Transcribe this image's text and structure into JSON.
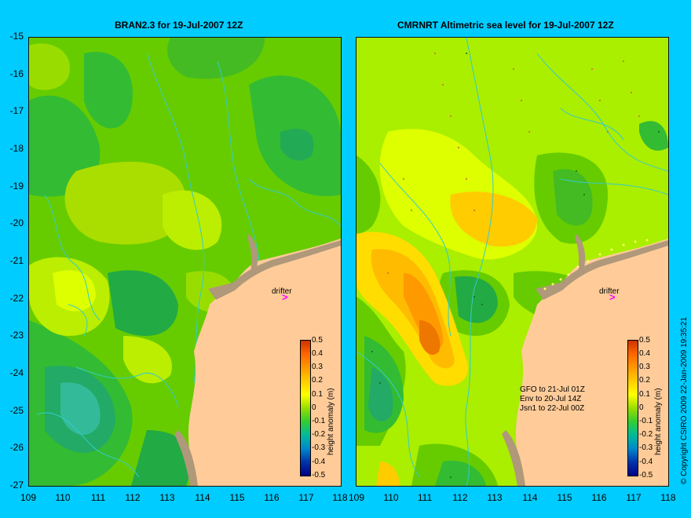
{
  "colors": {
    "background": "#00ccff",
    "land": "#ffcc99",
    "coast_shelf": "#c0a080",
    "contour": "#33cccc",
    "drifter_arrow": "#ff00ff"
  },
  "left_panel": {
    "title": "BRAN2.3  for 19-Jul-2007 12Z"
  },
  "right_panel": {
    "title": "CMRNRT Altimetric sea level  for 19-Jul-2007 12Z"
  },
  "axes": {
    "y_ticks": [
      "-15",
      "-16",
      "-17",
      "-18",
      "-19",
      "-20",
      "-21",
      "-22",
      "-23",
      "-24",
      "-25",
      "-26",
      "-27"
    ],
    "x_ticks": [
      "109",
      "110",
      "111",
      "112",
      "113",
      "114",
      "115",
      "116",
      "117",
      "118"
    ]
  },
  "colorbar": {
    "title": "height anomaly (m)",
    "ticks": [
      "0.5",
      "0.4",
      "0.3",
      "0.2",
      "0.1",
      "0",
      "-0.1",
      "-0.2",
      "-0.3",
      "-0.4",
      "-0.5"
    ],
    "range": [
      -0.5,
      0.5
    ]
  },
  "drifter_label": "drifter",
  "satellites": [
    "GFO to 21-Jul 01Z",
    "Env to 20-Jul 14Z",
    "Jsn1 to 22-Jul 00Z"
  ],
  "copyright": "© Copyright CSIRO 2009   22-Jan-2009 19:35:21"
}
